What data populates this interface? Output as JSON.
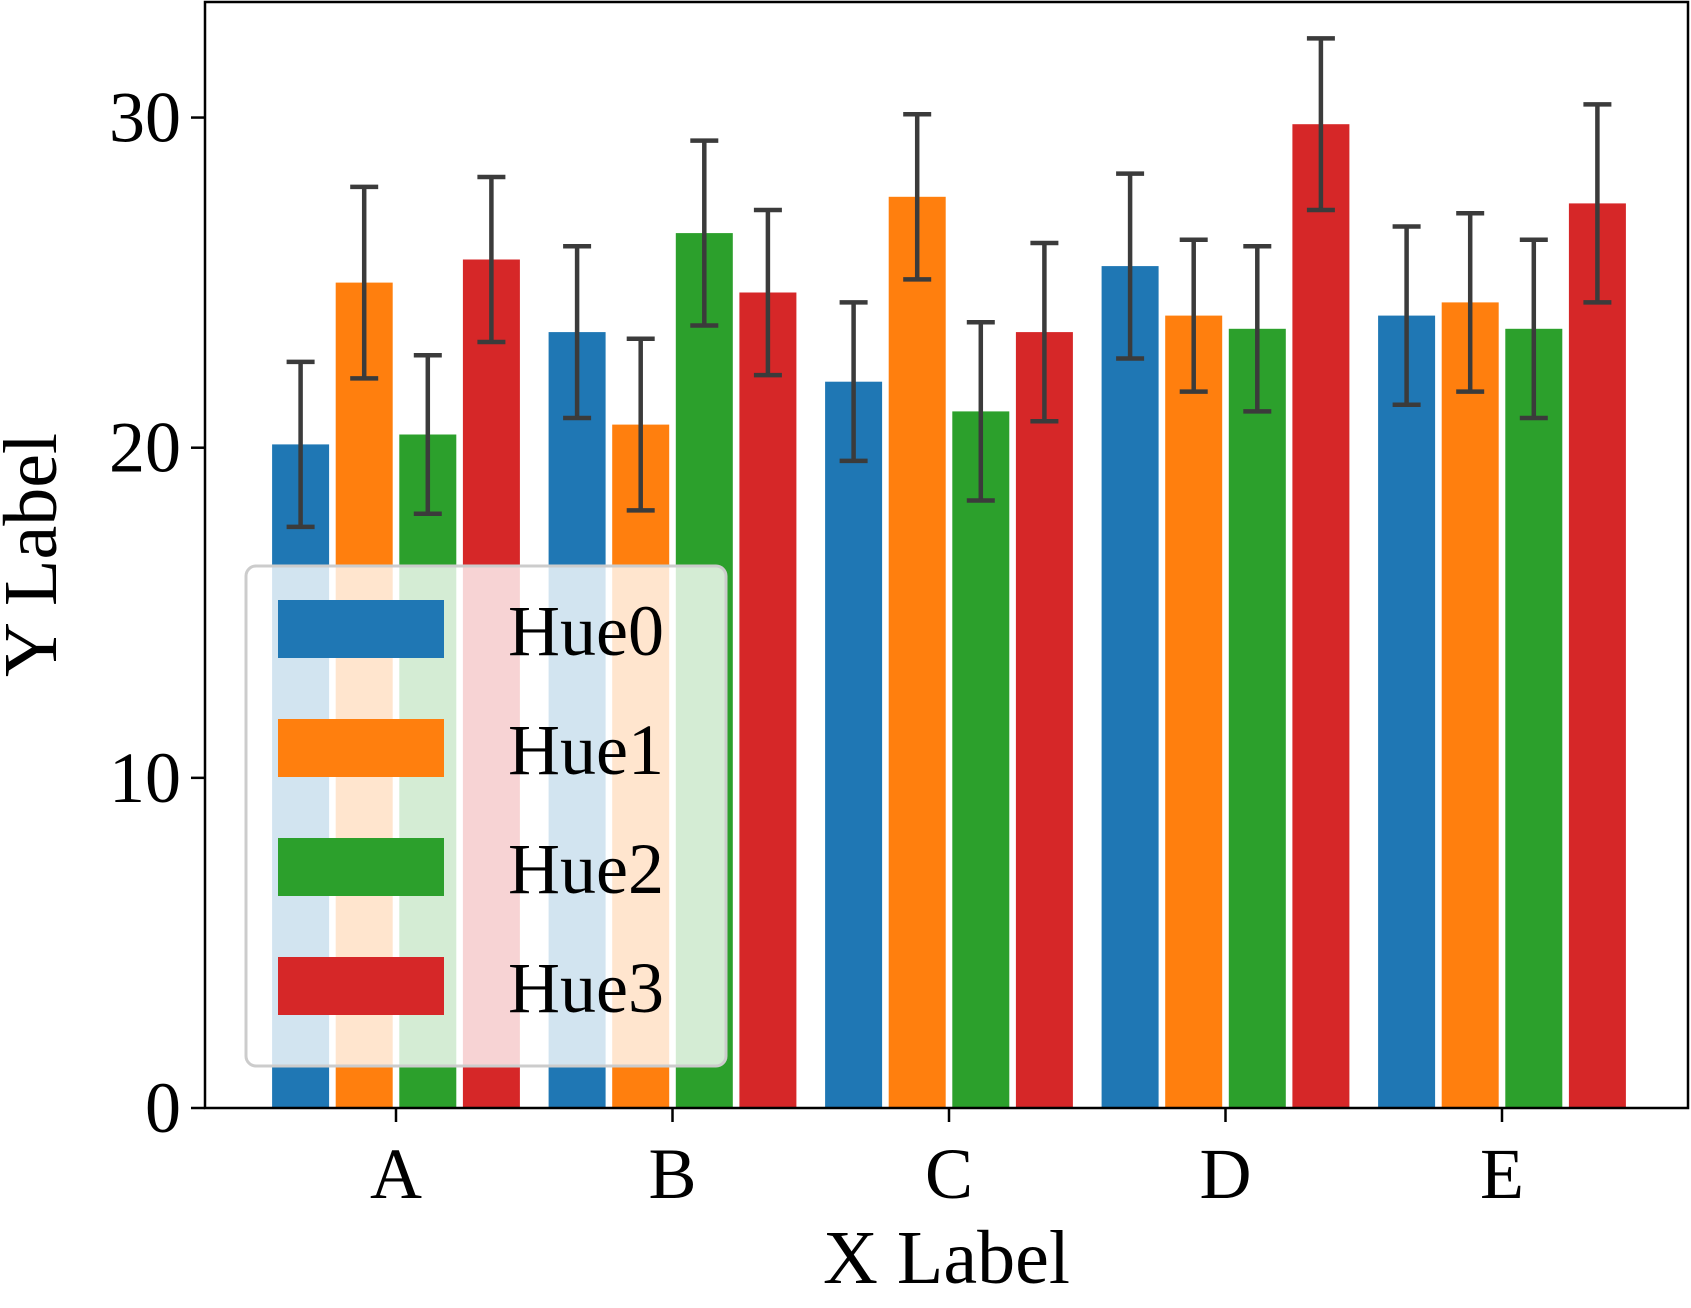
{
  "chart_data": {
    "type": "bar",
    "title": "",
    "xlabel": "X Label",
    "ylabel": "Y Label",
    "categories": [
      "A",
      "B",
      "C",
      "D",
      "E"
    ],
    "ylim": [
      0,
      33.5
    ],
    "yticks": [
      0,
      10,
      20,
      30
    ],
    "grid": false,
    "legend_position": "lower-left",
    "series": [
      {
        "name": "Hue0",
        "color": "#1f77b4",
        "values": [
          20.1,
          23.5,
          22.0,
          25.5,
          24.0
        ],
        "errors": [
          2.5,
          2.6,
          2.4,
          2.8,
          2.7
        ]
      },
      {
        "name": "Hue1",
        "color": "#ff7f0e",
        "values": [
          25.0,
          20.7,
          27.6,
          24.0,
          24.4
        ],
        "errors": [
          2.9,
          2.6,
          2.5,
          2.3,
          2.7
        ]
      },
      {
        "name": "Hue2",
        "color": "#2ca02c",
        "values": [
          20.4,
          26.5,
          21.1,
          23.6,
          23.6
        ],
        "errors": [
          2.4,
          2.8,
          2.7,
          2.5,
          2.7
        ]
      },
      {
        "name": "Hue3",
        "color": "#d62728",
        "values": [
          25.7,
          24.7,
          23.5,
          29.8,
          27.4
        ],
        "errors": [
          2.5,
          2.5,
          2.7,
          2.6,
          3.0
        ]
      }
    ],
    "error_bar_color": "#3b3b3b"
  }
}
